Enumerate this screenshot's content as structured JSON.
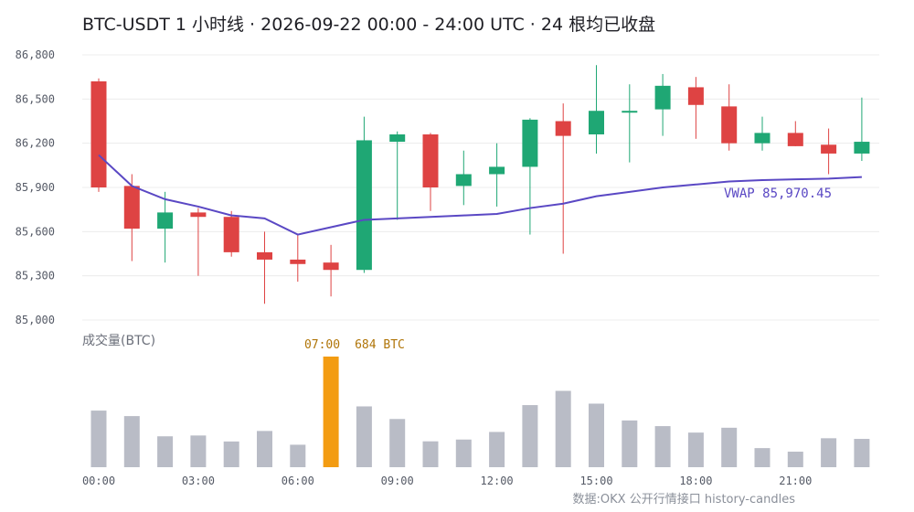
{
  "title": "BTC-USDT 1 小时线 · 2026-09-22 00:00 - 24:00 UTC · 24 根均已收盘",
  "volume_label": "成交量(BTC)",
  "peak_label": {
    "time": "07:00",
    "value": "684 BTC"
  },
  "vwap_label": "VWAP 85,970.45",
  "source": "数据:OKX 公开行情接口 history-candles",
  "colors": {
    "up": "#1fa774",
    "down": "#de4343",
    "volume": "#b9bcc6",
    "volume_peak": "#f39c12",
    "vwap": "#5a48c4",
    "grid": "#ececec"
  },
  "chart_data": [
    {
      "type": "candlestick",
      "y_ticks": [
        "86,800",
        "86,500",
        "86,200",
        "85,900",
        "85,600",
        "85,300",
        "85,000"
      ],
      "ylim": [
        85000,
        86800
      ],
      "grid": true,
      "x": [
        "00:00",
        "01:00",
        "02:00",
        "03:00",
        "04:00",
        "05:00",
        "06:00",
        "07:00",
        "08:00",
        "09:00",
        "10:00",
        "11:00",
        "12:00",
        "13:00",
        "14:00",
        "15:00",
        "16:00",
        "17:00",
        "18:00",
        "19:00",
        "20:00",
        "21:00",
        "22:00",
        "23:00"
      ],
      "open": [
        86620,
        85910,
        85620,
        85730,
        85700,
        85460,
        85410,
        85390,
        85340,
        86210,
        86260,
        85910,
        85990,
        86040,
        86350,
        86260,
        86410,
        86430,
        86580,
        86450,
        86200,
        86270,
        86190,
        86130
      ],
      "high": [
        86640,
        85990,
        85870,
        85760,
        85740,
        85600,
        85580,
        85510,
        86380,
        86280,
        86270,
        86150,
        86200,
        86370,
        86470,
        86730,
        86600,
        86670,
        86650,
        86600,
        86380,
        86350,
        86300,
        86510
      ],
      "low": [
        85870,
        85400,
        85390,
        85300,
        85430,
        85110,
        85260,
        85160,
        85320,
        85680,
        85740,
        85780,
        85770,
        85580,
        85450,
        86130,
        86070,
        86250,
        86230,
        86150,
        86150,
        86180,
        85990,
        86080
      ],
      "close": [
        85900,
        85620,
        85730,
        85700,
        85460,
        85410,
        85380,
        85340,
        86220,
        86260,
        85900,
        85990,
        86040,
        86360,
        86250,
        86420,
        86420,
        86590,
        86460,
        86200,
        86270,
        86180,
        86130,
        86210
      ],
      "vwap": [
        86120,
        85910,
        85820,
        85770,
        85710,
        85690,
        85580,
        85630,
        85680,
        85690,
        85700,
        85710,
        85720,
        85760,
        85790,
        85840,
        85870,
        85900,
        85920,
        85940,
        85950,
        85955,
        85960,
        85970.45
      ]
    },
    {
      "type": "bar",
      "label": "成交量(BTC)",
      "x_ticks": [
        "00:00",
        "03:00",
        "06:00",
        "09:00",
        "12:00",
        "15:00",
        "18:00",
        "21:00"
      ],
      "values": [
        350,
        316,
        191,
        196,
        159,
        224,
        139,
        684,
        376,
        298,
        160,
        171,
        218,
        384,
        472,
        393,
        289,
        254,
        214,
        244,
        118,
        96,
        179,
        175
      ],
      "highlight_index": 7
    }
  ]
}
